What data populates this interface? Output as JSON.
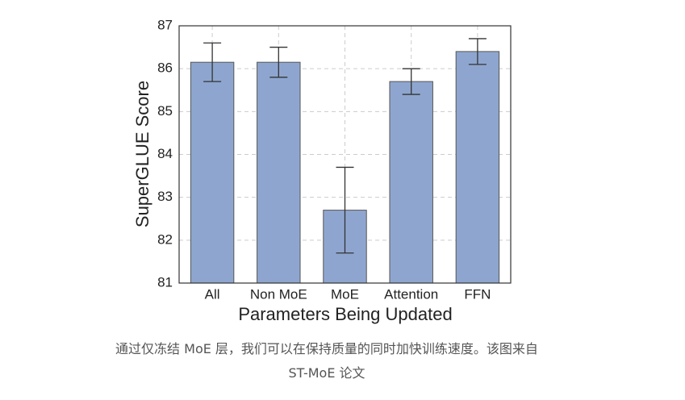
{
  "chart_data": {
    "type": "bar",
    "categories": [
      "All",
      "Non MoE",
      "MoE",
      "Attention",
      "FFN"
    ],
    "values": [
      86.15,
      86.15,
      82.7,
      85.7,
      86.4
    ],
    "errors": [
      0.45,
      0.35,
      1.0,
      0.3,
      0.3
    ],
    "color": "#8ea6cf",
    "xlabel": "Parameters Being Updated",
    "ylabel": "SuperGLUE Score",
    "ylim": [
      81,
      87
    ],
    "yticks": [
      81,
      82,
      83,
      84,
      85,
      86,
      87
    ],
    "grid": true
  },
  "caption": "通过仅冻结 MoE 层，我们可以在保持质量的同时加快训练速度。该图来自 ST-MoE 论文"
}
